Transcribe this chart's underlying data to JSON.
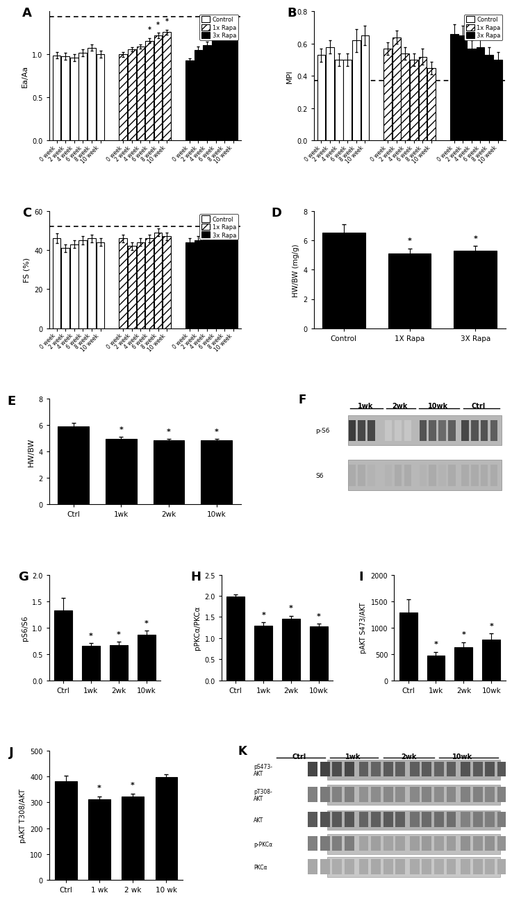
{
  "panel_A": {
    "label": "A",
    "ylabel": "Ea/Aa",
    "ylim": [
      0.0,
      1.5
    ],
    "yticks": [
      0.0,
      0.5,
      1.0
    ],
    "ytick_labels": [
      "0.0",
      "0.5",
      "1.0"
    ],
    "dashed_line": 1.44,
    "groups": [
      "Control",
      "1x Rapa",
      "3x Rapa"
    ],
    "timepoints": [
      "0 week",
      "2 week",
      "4 week",
      "6 week",
      "8 week",
      "10 week"
    ],
    "values": {
      "Control": [
        0.99,
        0.98,
        0.96,
        1.02,
        1.08,
        1.0
      ],
      "1x Rapa": [
        1.0,
        1.06,
        1.09,
        1.16,
        1.22,
        1.26
      ],
      "3x Rapa": [
        0.93,
        1.05,
        1.11,
        1.2,
        1.25,
        1.26
      ]
    },
    "errors": {
      "Control": [
        0.035,
        0.04,
        0.04,
        0.04,
        0.04,
        0.04
      ],
      "1x Rapa": [
        0.025,
        0.025,
        0.025,
        0.03,
        0.03,
        0.03
      ],
      "3x Rapa": [
        0.025,
        0.04,
        0.04,
        0.04,
        0.03,
        0.03
      ]
    },
    "sig": {
      "Control": [
        false,
        false,
        false,
        false,
        false,
        false
      ],
      "1x Rapa": [
        false,
        false,
        false,
        true,
        true,
        true
      ],
      "3x Rapa": [
        false,
        false,
        true,
        true,
        true,
        true
      ]
    }
  },
  "panel_B": {
    "label": "B",
    "ylabel": "MPI",
    "ylim": [
      0.0,
      0.8
    ],
    "yticks": [
      0.0,
      0.2,
      0.4,
      0.6,
      0.8
    ],
    "ytick_labels": [
      "0.0",
      "0.2",
      "0.4",
      "0.6",
      "0.8"
    ],
    "dashed_line": 0.37,
    "groups": [
      "Control",
      "1x Rapa",
      "3x Rapa"
    ],
    "timepoints": [
      "0 week",
      "2 week",
      "4 week",
      "6 week",
      "8 week",
      "10 week"
    ],
    "values": {
      "Control": [
        0.53,
        0.58,
        0.5,
        0.5,
        0.62,
        0.65
      ],
      "1x Rapa": [
        0.57,
        0.64,
        0.54,
        0.5,
        0.52,
        0.45
      ],
      "3x Rapa": [
        0.66,
        0.65,
        0.57,
        0.58,
        0.53,
        0.5
      ]
    },
    "errors": {
      "Control": [
        0.04,
        0.04,
        0.04,
        0.04,
        0.07,
        0.06
      ],
      "1x Rapa": [
        0.04,
        0.04,
        0.04,
        0.04,
        0.05,
        0.04
      ],
      "3x Rapa": [
        0.06,
        0.06,
        0.05,
        0.05,
        0.05,
        0.05
      ]
    }
  },
  "panel_C": {
    "label": "C",
    "ylabel": "FS (%)",
    "ylim": [
      0,
      60
    ],
    "yticks": [
      0,
      20,
      40,
      60
    ],
    "ytick_labels": [
      "0",
      "20",
      "40",
      "60"
    ],
    "dashed_line": 52,
    "groups": [
      "Control",
      "1x Rapa",
      "3x Rapa"
    ],
    "timepoints": [
      "0 week",
      "2 week",
      "4 week",
      "6 week",
      "8 week",
      "10 week"
    ],
    "values": {
      "Control": [
        46,
        41,
        43,
        45,
        46,
        44
      ],
      "1x Rapa": [
        46,
        42,
        44,
        46,
        49,
        47
      ],
      "3x Rapa": [
        44,
        45,
        46,
        47,
        48,
        49
      ]
    },
    "errors": {
      "Control": [
        2.5,
        2,
        2,
        2,
        2,
        2
      ],
      "1x Rapa": [
        2,
        2,
        2,
        2,
        2,
        2
      ],
      "3x Rapa": [
        2,
        2,
        2,
        2,
        2,
        2
      ]
    }
  },
  "panel_D": {
    "label": "D",
    "ylabel": "HW/BW (mg/g)",
    "ylim": [
      0,
      8
    ],
    "yticks": [
      0,
      2,
      4,
      6,
      8
    ],
    "ytick_labels": [
      "0",
      "2",
      "4",
      "6",
      "8"
    ],
    "categories": [
      "Control",
      "1X Rapa",
      "3X Rapa"
    ],
    "values": [
      6.5,
      5.1,
      5.3
    ],
    "errors": [
      0.6,
      0.35,
      0.3
    ],
    "sig": [
      false,
      true,
      true
    ]
  },
  "panel_E": {
    "label": "E",
    "ylabel": "HW/BW",
    "ylim": [
      0,
      8
    ],
    "yticks": [
      0,
      2,
      4,
      6,
      8
    ],
    "ytick_labels": [
      "0",
      "2",
      "4",
      "6",
      "8"
    ],
    "categories": [
      "Ctrl",
      "1wk",
      "2wk",
      "10wk"
    ],
    "values": [
      5.9,
      4.95,
      4.85,
      4.85
    ],
    "errors": [
      0.28,
      0.15,
      0.1,
      0.1
    ],
    "sig": [
      false,
      true,
      true,
      true
    ]
  },
  "panel_G": {
    "label": "G",
    "ylabel": "pS6/S6",
    "ylim": [
      0.0,
      2.0
    ],
    "yticks": [
      0.0,
      0.5,
      1.0,
      1.5,
      2.0
    ],
    "ytick_labels": [
      "0.0",
      "0.5",
      "1.0",
      "1.5",
      "2.0"
    ],
    "categories": [
      "Ctrl",
      "1wk",
      "2wk",
      "10wk"
    ],
    "values": [
      1.33,
      0.65,
      0.67,
      0.87
    ],
    "errors": [
      0.23,
      0.06,
      0.06,
      0.07
    ],
    "sig": [
      false,
      true,
      true,
      true
    ]
  },
  "panel_H": {
    "label": "H",
    "ylabel": "pPKCα/PKCα",
    "ylim": [
      0.0,
      2.5
    ],
    "yticks": [
      0.0,
      0.5,
      1.0,
      1.5,
      2.0,
      2.5
    ],
    "ytick_labels": [
      "0.0",
      "0.5",
      "1.0",
      "1.5",
      "2.0",
      "2.5"
    ],
    "categories": [
      "Ctrl",
      "1wk",
      "2wk",
      "10wk"
    ],
    "values": [
      1.98,
      1.3,
      1.45,
      1.28
    ],
    "errors": [
      0.06,
      0.08,
      0.08,
      0.06
    ],
    "sig": [
      false,
      true,
      true,
      true
    ]
  },
  "panel_I": {
    "label": "I",
    "ylabel": "pAKT S473/AKT",
    "ylim": [
      0,
      2000
    ],
    "yticks": [
      0,
      500,
      1000,
      1500,
      2000
    ],
    "ytick_labels": [
      "0",
      "500",
      "1000",
      "1500",
      "2000"
    ],
    "categories": [
      "Ctrl",
      "1wk",
      "2wk",
      "10wk"
    ],
    "values": [
      1280,
      475,
      625,
      775
    ],
    "errors": [
      260,
      65,
      100,
      110
    ],
    "sig": [
      false,
      true,
      true,
      true
    ]
  },
  "panel_J": {
    "label": "J",
    "ylabel": "pAKT T308/AKT",
    "ylim": [
      0,
      500
    ],
    "yticks": [
      0,
      100,
      200,
      300,
      400,
      500
    ],
    "ytick_labels": [
      "0",
      "100",
      "200",
      "300",
      "400",
      "500"
    ],
    "categories": [
      "Ctrl",
      "1 wk",
      "2 wk",
      "10 wk"
    ],
    "values": [
      382,
      312,
      322,
      398
    ],
    "errors": [
      22,
      12,
      12,
      12
    ],
    "sig": [
      false,
      true,
      true,
      false
    ]
  }
}
